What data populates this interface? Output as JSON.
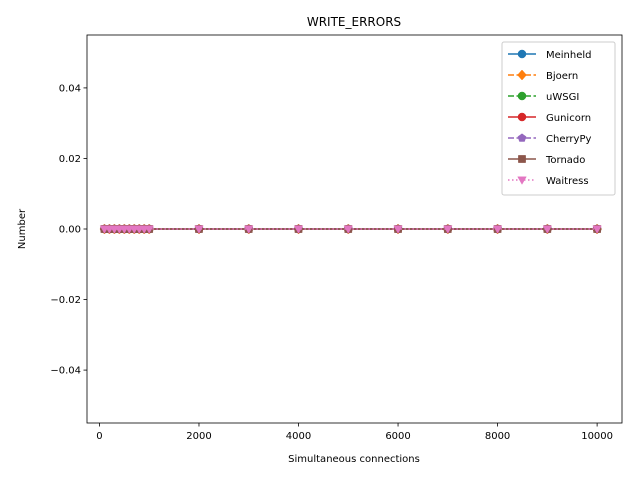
{
  "chart_data": {
    "type": "line",
    "title": "WRITE_ERRORS",
    "xlabel": "Simultaneous connections",
    "ylabel": "Number",
    "xlim": [
      -250,
      10500
    ],
    "ylim": [
      -0.055,
      0.055
    ],
    "xticks": [
      0,
      2000,
      4000,
      6000,
      8000,
      10000
    ],
    "xtick_labels": [
      "0",
      "2000",
      "4000",
      "6000",
      "8000",
      "10000"
    ],
    "yticks": [
      -0.04,
      -0.02,
      0.0,
      0.02,
      0.04
    ],
    "ytick_labels": [
      "−0.04",
      "−0.02",
      "0.00",
      "0.02",
      "0.04"
    ],
    "grid": false,
    "legend_position": "upper right",
    "x": [
      100,
      200,
      300,
      400,
      500,
      600,
      700,
      800,
      900,
      1000,
      2000,
      3000,
      4000,
      5000,
      6000,
      7000,
      8000,
      9000,
      10000
    ],
    "series": [
      {
        "name": "Meinheld",
        "color": "#1f77b4",
        "marker": "circle",
        "linestyle": "solid",
        "values": [
          0,
          0,
          0,
          0,
          0,
          0,
          0,
          0,
          0,
          0,
          0,
          0,
          0,
          0,
          0,
          0,
          0,
          0,
          0
        ]
      },
      {
        "name": "Bjoern",
        "color": "#ff7f0e",
        "marker": "diamond",
        "linestyle": "dashed",
        "values": [
          0,
          0,
          0,
          0,
          0,
          0,
          0,
          0,
          0,
          0,
          0,
          0,
          0,
          0,
          0,
          0,
          0,
          0,
          0
        ]
      },
      {
        "name": "uWSGI",
        "color": "#2ca02c",
        "marker": "circle",
        "linestyle": "dashed",
        "values": [
          0,
          0,
          0,
          0,
          0,
          0,
          0,
          0,
          0,
          0,
          0,
          0,
          0,
          0,
          0,
          0,
          0,
          0,
          0
        ]
      },
      {
        "name": "Gunicorn",
        "color": "#d62728",
        "marker": "circle",
        "linestyle": "solid",
        "values": [
          0,
          0,
          0,
          0,
          0,
          0,
          0,
          0,
          0,
          0,
          0,
          0,
          0,
          0,
          0,
          0,
          0,
          0,
          0
        ]
      },
      {
        "name": "CherryPy",
        "color": "#9467bd",
        "marker": "pentagon",
        "linestyle": "dashed",
        "values": [
          0,
          0,
          0,
          0,
          0,
          0,
          0,
          0,
          0,
          0,
          0,
          0,
          0,
          0,
          0,
          0,
          0,
          0,
          0
        ]
      },
      {
        "name": "Tornado",
        "color": "#8c564b",
        "marker": "square",
        "linestyle": "solid",
        "values": [
          0,
          0,
          0,
          0,
          0,
          0,
          0,
          0,
          0,
          0,
          0,
          0,
          0,
          0,
          0,
          0,
          0,
          0,
          0
        ]
      },
      {
        "name": "Waitress",
        "color": "#e377c2",
        "marker": "triangle-down",
        "linestyle": "dotted",
        "values": [
          0,
          0,
          0,
          0,
          0,
          0,
          0,
          0,
          0,
          0,
          0,
          0,
          0,
          0,
          0,
          0,
          0,
          0,
          0
        ]
      }
    ]
  }
}
